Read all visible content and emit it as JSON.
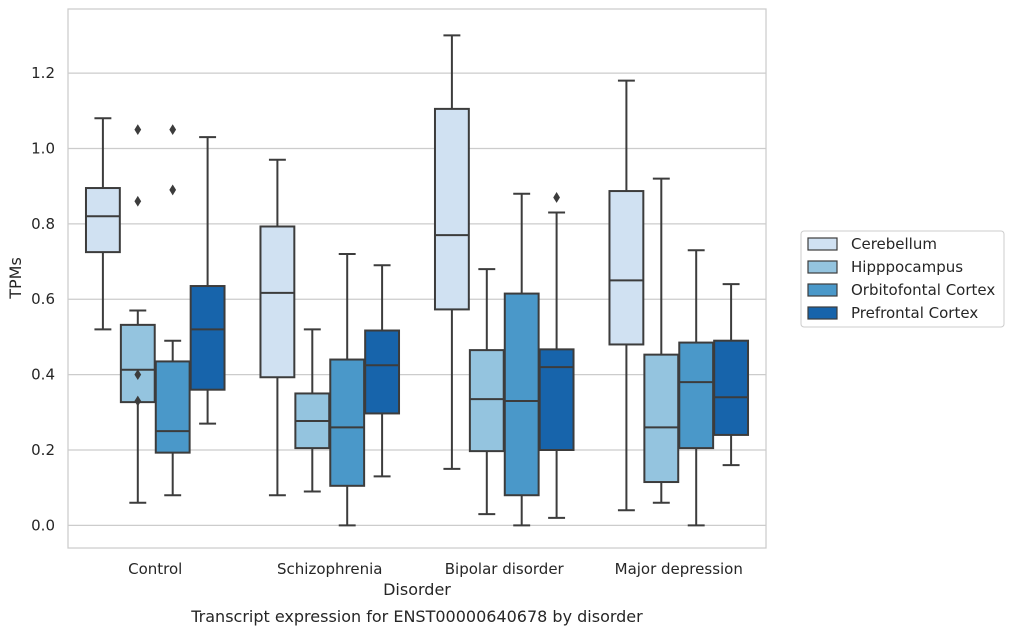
{
  "chart_data": {
    "type": "box",
    "title": "",
    "caption": "Transcript expression for ENST00000640678 by disorder",
    "xlabel": "Disorder",
    "ylabel": "TPMs",
    "ylim": [
      -0.06,
      1.37
    ],
    "yticks": [
      0.0,
      0.2,
      0.4,
      0.6,
      0.8,
      1.0,
      1.2
    ],
    "grid": "y",
    "legend_position": "right",
    "categories": [
      "Control",
      "Schizophrenia",
      "Bipolar disorder",
      "Major depression"
    ],
    "series": [
      {
        "name": "Cerebellum",
        "color": "#d0e1f2",
        "boxes": [
          {
            "whisker_low": 0.52,
            "q1": 0.725,
            "median": 0.82,
            "q3": 0.895,
            "whisker_high": 1.08,
            "outliers": []
          },
          {
            "whisker_low": 0.08,
            "q1": 0.393,
            "median": 0.617,
            "q3": 0.793,
            "whisker_high": 0.97,
            "outliers": []
          },
          {
            "whisker_low": 0.15,
            "q1": 0.573,
            "median": 0.77,
            "q3": 1.105,
            "whisker_high": 1.3,
            "outliers": []
          },
          {
            "whisker_low": 0.04,
            "q1": 0.48,
            "median": 0.65,
            "q3": 0.887,
            "whisker_high": 1.18,
            "outliers": []
          }
        ]
      },
      {
        "name": "Hipppocampus",
        "color": "#94c4df",
        "boxes": [
          {
            "whisker_low": 0.06,
            "q1": 0.327,
            "median": 0.413,
            "q3": 0.532,
            "whisker_high": 0.57,
            "outliers": [
              0.4,
              0.33,
              0.86,
              1.05
            ]
          },
          {
            "whisker_low": 0.09,
            "q1": 0.205,
            "median": 0.277,
            "q3": 0.35,
            "whisker_high": 0.52,
            "outliers": []
          },
          {
            "whisker_low": 0.03,
            "q1": 0.197,
            "median": 0.335,
            "q3": 0.465,
            "whisker_high": 0.68,
            "outliers": []
          },
          {
            "whisker_low": 0.06,
            "q1": 0.115,
            "median": 0.26,
            "q3": 0.453,
            "whisker_high": 0.92,
            "outliers": []
          }
        ]
      },
      {
        "name": "Orbitofontal Cortex",
        "color": "#4a98c9",
        "boxes": [
          {
            "whisker_low": 0.08,
            "q1": 0.193,
            "median": 0.25,
            "q3": 0.435,
            "whisker_high": 0.49,
            "outliers": [
              0.89,
              1.05
            ]
          },
          {
            "whisker_low": 0.0,
            "q1": 0.105,
            "median": 0.26,
            "q3": 0.44,
            "whisker_high": 0.72,
            "outliers": []
          },
          {
            "whisker_low": 0.0,
            "q1": 0.08,
            "median": 0.33,
            "q3": 0.615,
            "whisker_high": 0.88,
            "outliers": []
          },
          {
            "whisker_low": 0.0,
            "q1": 0.205,
            "median": 0.38,
            "q3": 0.485,
            "whisker_high": 0.73,
            "outliers": []
          }
        ]
      },
      {
        "name": "Prefrontal Cortex",
        "color": "#1764ab",
        "boxes": [
          {
            "whisker_low": 0.27,
            "q1": 0.36,
            "median": 0.52,
            "q3": 0.635,
            "whisker_high": 1.03,
            "outliers": []
          },
          {
            "whisker_low": 0.13,
            "q1": 0.297,
            "median": 0.425,
            "q3": 0.517,
            "whisker_high": 0.69,
            "outliers": []
          },
          {
            "whisker_low": 0.02,
            "q1": 0.2,
            "median": 0.42,
            "q3": 0.467,
            "whisker_high": 0.83,
            "outliers": [
              0.87
            ]
          },
          {
            "whisker_low": 0.16,
            "q1": 0.24,
            "median": 0.34,
            "q3": 0.49,
            "whisker_high": 0.64,
            "outliers": []
          }
        ]
      }
    ]
  }
}
